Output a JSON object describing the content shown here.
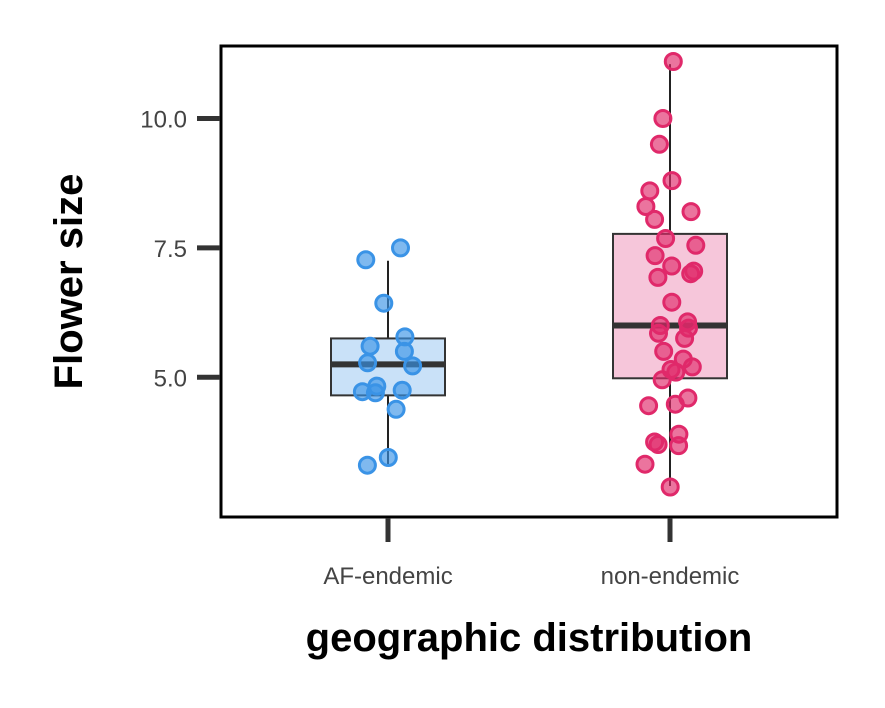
{
  "chart_data": {
    "type": "box",
    "categories": [
      "AF-endemic",
      "non-endemic"
    ],
    "xlabel": "geographic distribution",
    "ylabel": "Flower size",
    "ylim": [
      2.3,
      11.4
    ],
    "yticks": [
      5.0,
      7.5,
      10.0
    ],
    "ytick_labels": [
      "5.0",
      "7.5",
      "10.0"
    ],
    "grid": false,
    "boxes": [
      {
        "category": "AF-endemic",
        "whisker_low": 3.3,
        "q1": 4.65,
        "median": 5.25,
        "q3": 5.75,
        "whisker_high": 7.25
      },
      {
        "category": "non-endemic",
        "whisker_low": 2.9,
        "q1": 4.98,
        "median": 6.0,
        "q3": 7.77,
        "whisker_high": 11.05
      }
    ],
    "points": [
      {
        "category": "AF-endemic",
        "values": [
          7.5,
          7.27,
          6.43,
          5.78,
          5.6,
          5.5,
          5.28,
          5.22,
          4.83,
          4.75,
          4.72,
          4.7,
          4.38,
          3.45,
          3.3
        ]
      },
      {
        "category": "non-endemic",
        "values": [
          11.1,
          10.0,
          9.5,
          8.8,
          8.6,
          8.3,
          8.2,
          8.05,
          7.68,
          7.55,
          7.35,
          7.15,
          7.05,
          7.0,
          6.93,
          6.45,
          6.07,
          6.0,
          5.95,
          5.85,
          5.75,
          5.5,
          5.35,
          5.2,
          5.15,
          5.1,
          4.95,
          4.6,
          4.48,
          4.45,
          3.9,
          3.75,
          3.7,
          3.68,
          3.32,
          2.88
        ]
      }
    ],
    "colors": {
      "AF-endemic": {
        "point": "#3a93e6",
        "box_fill": "#c9e1f8"
      },
      "non-endemic": {
        "point": "#e0296a",
        "box_fill": "#f6c6da"
      },
      "box_stroke": "#333333",
      "median": "#333333",
      "whisker": "#222222",
      "frame": "#000000"
    }
  }
}
